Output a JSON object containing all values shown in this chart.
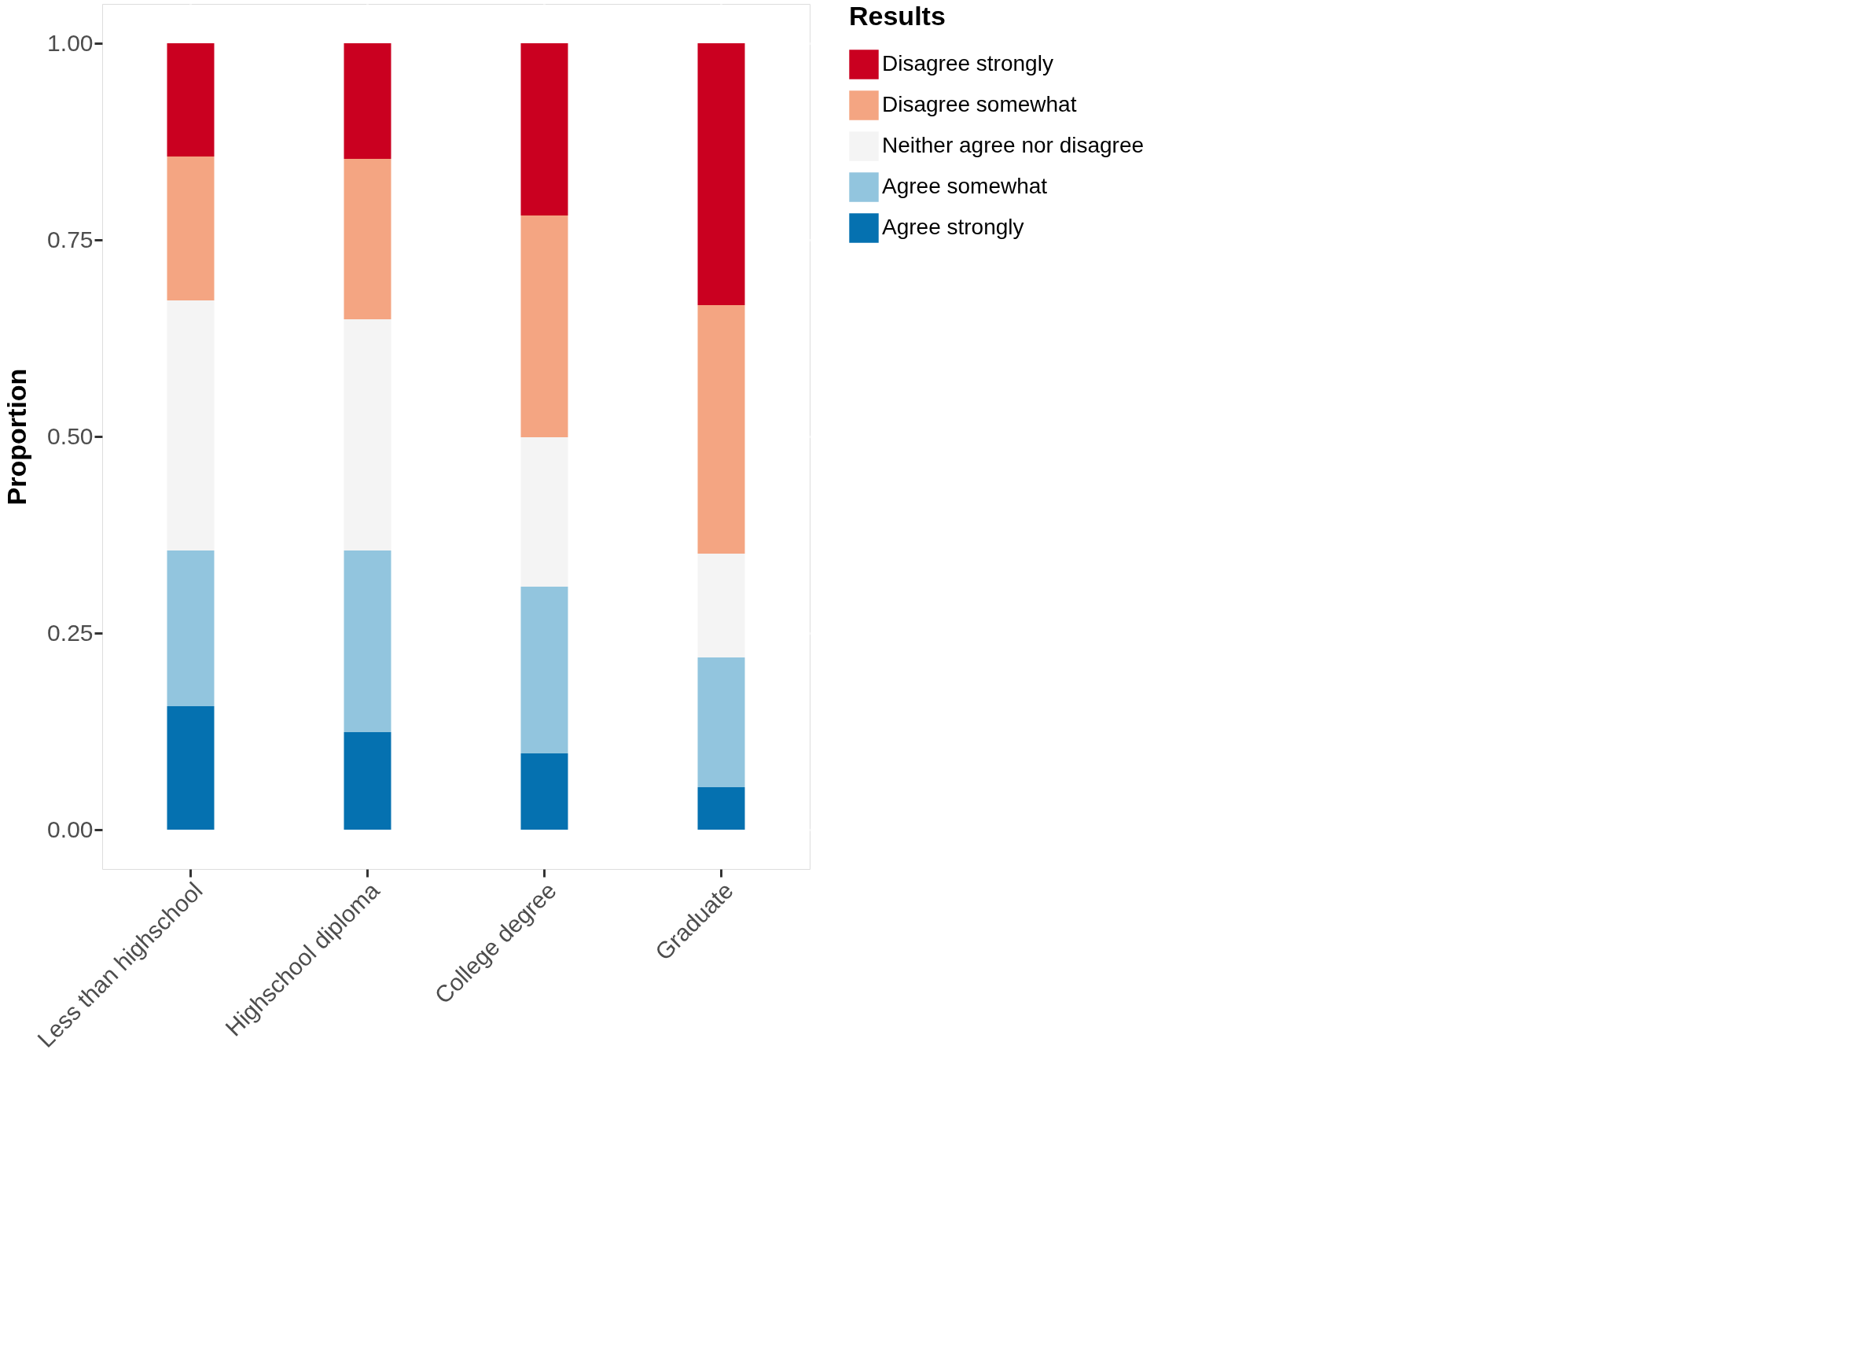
{
  "chart_data": {
    "type": "bar",
    "stacked": true,
    "ylabel": "Proportion",
    "legend_title": "Results",
    "legend": "right",
    "grid": true,
    "categories": [
      "Less than highschool",
      "Highschool diploma",
      "College degree",
      "Graduate"
    ],
    "series": [
      {
        "name": "Agree strongly",
        "color": "#0571b0",
        "values": [
          0.157,
          0.124,
          0.097,
          0.054
        ]
      },
      {
        "name": "Agree somewhat",
        "color": "#92c5de",
        "values": [
          0.198,
          0.231,
          0.212,
          0.165
        ]
      },
      {
        "name": "Neither agree nor disagree",
        "color": "#f4f4f4",
        "values": [
          0.318,
          0.294,
          0.19,
          0.132
        ]
      },
      {
        "name": "Disagree somewhat",
        "color": "#f4a582",
        "values": [
          0.183,
          0.204,
          0.282,
          0.316
        ]
      },
      {
        "name": "Disagree strongly",
        "color": "#ca0020",
        "values": [
          0.144,
          0.147,
          0.219,
          0.333
        ]
      }
    ],
    "ylim": [
      -0.05,
      1.05
    ],
    "yticks": [
      {
        "value": 0,
        "label": "0.00"
      },
      {
        "value": 0.25,
        "label": "0.25"
      },
      {
        "value": 0.5,
        "label": "0.50"
      },
      {
        "value": 0.75,
        "label": "0.75"
      },
      {
        "value": 1,
        "label": "1.00"
      }
    ]
  }
}
